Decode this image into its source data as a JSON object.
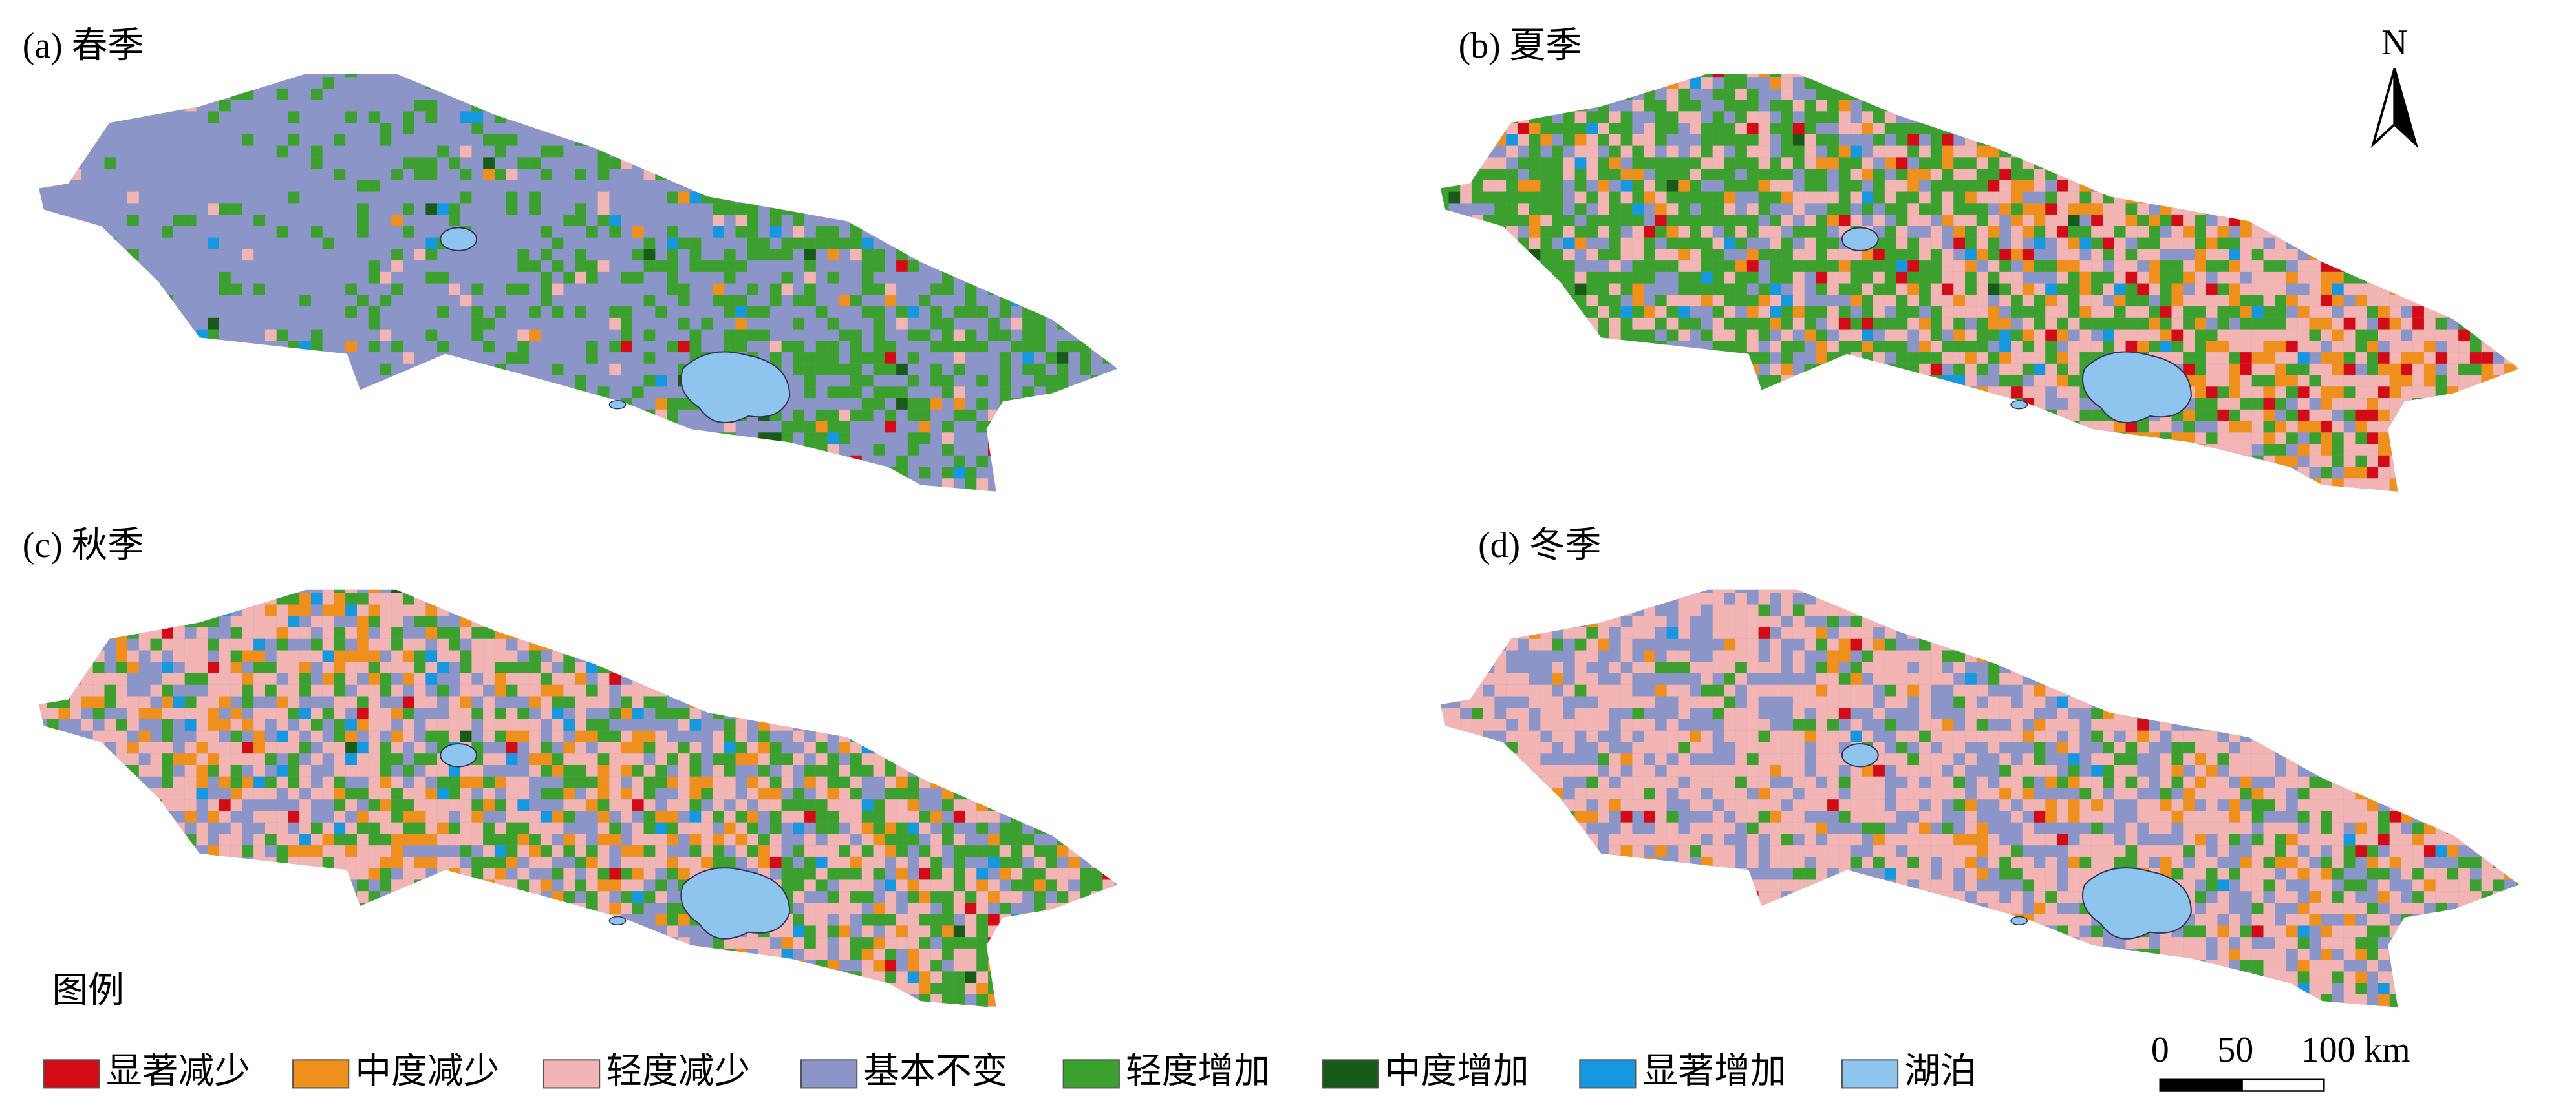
{
  "panels": [
    {
      "label": "(a) 春季"
    },
    {
      "label": "(b) 夏季"
    },
    {
      "label": "(c) 秋季"
    },
    {
      "label": "(d) 冬季"
    }
  ],
  "north": "N",
  "legend": {
    "title": "图例",
    "items": [
      {
        "label": "显著减少",
        "color": "#d20b16"
      },
      {
        "label": "中度减少",
        "color": "#f0901c"
      },
      {
        "label": "轻度减少",
        "color": "#f3b5b3"
      },
      {
        "label": "基本不变",
        "color": "#8c95c8"
      },
      {
        "label": "轻度增加",
        "color": "#3ba02d"
      },
      {
        "label": "中度增加",
        "color": "#185a18"
      },
      {
        "label": "显著增加",
        "color": "#1598e0"
      },
      {
        "label": "湖泊",
        "color": "#8dc5ef"
      }
    ]
  },
  "scale": {
    "labels": [
      "0",
      "50",
      "100 km"
    ]
  }
}
